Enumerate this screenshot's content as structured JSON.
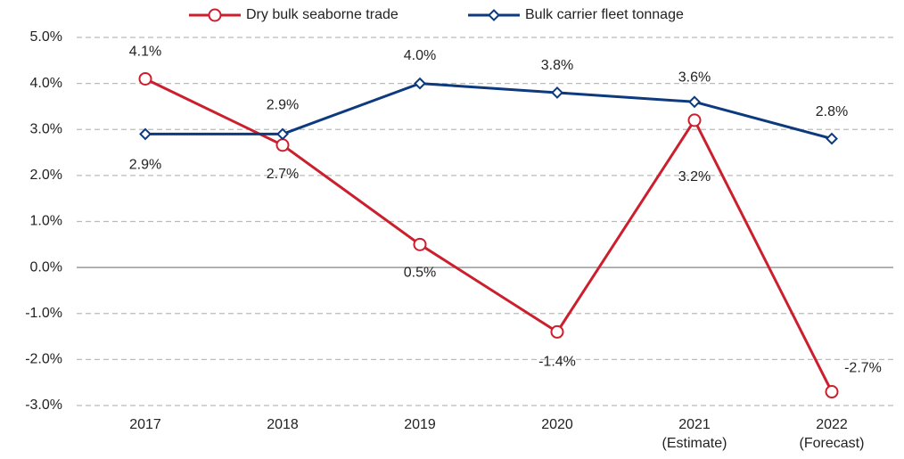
{
  "chart_data": {
    "type": "line",
    "categories": [
      "2017",
      "2018",
      "2019",
      "2020",
      "2021\n(Estimate)",
      "2022\n(Forecast)"
    ],
    "series": [
      {
        "name": "Dry bulk seaborne trade",
        "color": "#cc1f2e",
        "marker": "circle",
        "values": [
          4.1,
          2.66,
          0.5,
          -1.4,
          3.2,
          -2.7
        ],
        "value_labels": [
          "4.1%",
          "2.7%",
          "0.5%",
          "-1.4%",
          "3.2%",
          "-2.7%"
        ]
      },
      {
        "name": "Bulk carrier fleet tonnage",
        "color": "#0d3a7e",
        "marker": "diamond",
        "values": [
          2.9,
          2.9,
          4.0,
          3.8,
          3.6,
          2.8
        ],
        "value_labels": [
          "2.9%",
          "2.9%",
          "4.0%",
          "3.8%",
          "3.6%",
          "2.8%"
        ]
      }
    ],
    "ylim": [
      -3,
      5
    ],
    "yticks": [
      {
        "value": -3,
        "label": "-3.0%"
      },
      {
        "value": -2,
        "label": "-2.0%"
      },
      {
        "value": -1,
        "label": "-1.0%"
      },
      {
        "value": 0,
        "label": "0.0%"
      },
      {
        "value": 1,
        "label": "1.0%"
      },
      {
        "value": 2,
        "label": "2.0%"
      },
      {
        "value": 3,
        "label": "3.0%"
      },
      {
        "value": 4,
        "label": "4.0%"
      },
      {
        "value": 5,
        "label": "5.0%"
      }
    ],
    "grid": true,
    "legend": "top"
  }
}
